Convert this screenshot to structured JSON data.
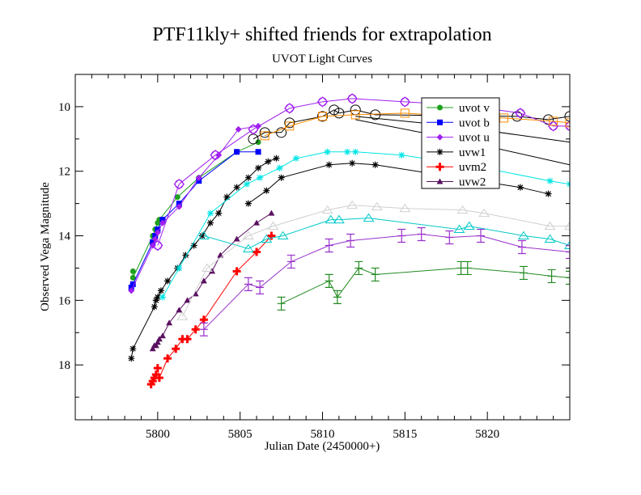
{
  "chart_data": {
    "type": "scatter",
    "title": "PTF11kly+ shifted friends for extrapolation",
    "subtitle": "UVOT Light Curves",
    "xlabel": "Julian Date (2450000+)",
    "ylabel": "Observed Vega Magnitude",
    "xlim": [
      5795,
      5825
    ],
    "ylim": [
      19.7,
      9.0
    ],
    "y_inverted": true,
    "x_ticks": [
      5800,
      5805,
      5810,
      5815,
      5820
    ],
    "x_tick_labels": [
      "5800",
      "5805",
      "5810",
      "5815",
      "5820"
    ],
    "y_ticks": [
      10,
      12,
      14,
      16,
      18
    ],
    "y_tick_labels": [
      "10",
      "12",
      "14",
      "16",
      "18"
    ],
    "legend_position": "top-right",
    "legend": [
      {
        "label": "uvot v",
        "color": "#1fa01f",
        "marker": "circle"
      },
      {
        "label": "uvot b",
        "color": "#0000ff",
        "marker": "square"
      },
      {
        "label": "uvot u",
        "color": "#a020f0",
        "marker": "diamond"
      },
      {
        "label": "uvw1",
        "color": "#000000",
        "marker": "star"
      },
      {
        "label": "uvm2",
        "color": "#ff0000",
        "marker": "plus"
      },
      {
        "label": "uvw2",
        "color": "#5a1060",
        "marker": "triangle"
      }
    ],
    "series": [
      {
        "name": "uvot v",
        "color": "#1fa01f",
        "marker": "circle",
        "x": [
          5798.5,
          5798.5,
          5799.7,
          5799.85,
          5800,
          5800.1,
          5801.2,
          5802.5,
          5804.8,
          5806.1
        ],
        "y": [
          15.1,
          15.3,
          14.0,
          13.8,
          13.6,
          13.5,
          12.8,
          12.2,
          11.4,
          11.1
        ]
      },
      {
        "name": "uvot b",
        "color": "#0000ff",
        "marker": "square",
        "x": [
          5798.4,
          5798.5,
          5799.7,
          5799.85,
          5800,
          5800.3,
          5801.3,
          5802.5,
          5804.8,
          5806.1
        ],
        "y": [
          15.6,
          15.5,
          14.2,
          14.0,
          13.8,
          13.5,
          13.0,
          12.3,
          11.4,
          11.4
        ]
      },
      {
        "name": "uvot u",
        "color": "#a020f0",
        "marker": "diamond",
        "x": [
          5798.4,
          5799.7,
          5799.85,
          5800,
          5800.3,
          5801.3,
          5802.5,
          5803.7,
          5804.9,
          5806.1
        ],
        "y": [
          15.7,
          14.3,
          14.1,
          13.9,
          13.6,
          13.1,
          12.2,
          11.5,
          10.7,
          10.6
        ]
      },
      {
        "name": "uvw1",
        "color": "#000000",
        "marker": "star",
        "x": [
          5798.4,
          5798.5,
          5799.8,
          5799.9,
          5800,
          5800.2,
          5800.6,
          5801.2,
          5801.7,
          5802.2,
          5802.7,
          5803.2,
          5803.7,
          5804.2,
          5804.8,
          5805.5,
          5806.1,
          5806.7,
          5807.2
        ],
        "y": [
          17.8,
          17.5,
          16.2,
          16.0,
          15.9,
          15.7,
          15.4,
          15.0,
          14.6,
          14.3,
          14.0,
          13.6,
          13.3,
          12.8,
          12.5,
          12.2,
          11.9,
          11.7,
          11.6
        ]
      },
      {
        "name": "uvm2",
        "color": "#ff0000",
        "marker": "plus",
        "x": [
          5799.6,
          5799.7,
          5799.8,
          5799.9,
          5800.0,
          5800.1,
          5800.6,
          5801.1,
          5801.5,
          5801.8,
          5802.3,
          5802.8,
          5804.8,
          5806.0,
          5806.9
        ],
        "y": [
          18.6,
          18.5,
          18.4,
          18.3,
          18.1,
          18.4,
          17.8,
          17.5,
          17.2,
          17.2,
          16.9,
          16.6,
          15.1,
          14.5,
          14.0
        ]
      },
      {
        "name": "uvw2",
        "color": "#5a1060",
        "marker": "triangle",
        "x": [
          5799.7,
          5799.8,
          5799.9,
          5800.0,
          5800.1,
          5800.3,
          5800.7,
          5801.3,
          5801.8,
          5802.3,
          5802.8,
          5803.3,
          5803.8,
          5804.8,
          5806.0,
          5806.9
        ],
        "y": [
          17.5,
          17.4,
          17.4,
          17.3,
          17.2,
          17.1,
          16.7,
          16.3,
          16.0,
          15.8,
          15.4,
          15.1,
          14.6,
          14.1,
          13.6,
          13.3
        ]
      },
      {
        "name": "",
        "color": "#000000",
        "marker": "circle-open",
        "x": [
          5805.8,
          5806.5,
          5807.5,
          5808.0,
          5810.0,
          5810.7,
          5811.0,
          5812.0,
          5813.2,
          5821.8,
          5823.7,
          5825.0
        ],
        "y": [
          11.0,
          10.8,
          10.8,
          10.5,
          10.3,
          10.1,
          10.2,
          10.1,
          10.25,
          10.3,
          10.4,
          10.3
        ]
      },
      {
        "name": "",
        "color": "#a020f0",
        "marker": "diamond-open",
        "x": [
          5800,
          5801.3,
          5803.5,
          5805.8,
          5808,
          5810,
          5811.8,
          5815,
          5818.5,
          5822,
          5824,
          5825
        ],
        "y": [
          14.3,
          12.4,
          11.5,
          10.7,
          10.05,
          9.85,
          9.75,
          9.85,
          9.95,
          10.2,
          10.6,
          10.6
        ]
      },
      {
        "name": "",
        "color": "#ff8c00",
        "marker": "square-open",
        "x": [
          5806.5,
          5808,
          5810,
          5812,
          5815,
          5818,
          5821,
          5824,
          5825
        ],
        "y": [
          10.9,
          10.6,
          10.3,
          10.25,
          10.2,
          10.3,
          10.35,
          10.45,
          10.5
        ]
      },
      {
        "name": "",
        "color": "#00e5e5",
        "marker": "star",
        "x": [
          5800.3,
          5801.3,
          5803.2,
          5805.4,
          5806.2,
          5807.4,
          5808.4,
          5810.3,
          5811.5,
          5812.0,
          5814.8,
          5818.8,
          5823.8,
          5825.0
        ],
        "y": [
          15.9,
          15.0,
          13.3,
          12.4,
          12.2,
          11.9,
          11.6,
          11.4,
          11.4,
          11.4,
          11.5,
          11.8,
          12.3,
          12.4
        ]
      },
      {
        "name": "",
        "color": "#000000",
        "marker": "star",
        "x": [
          5805.5,
          5806.6,
          5807.5,
          5810.4,
          5811.8,
          5813.2,
          5822.0,
          5823.7
        ],
        "y": [
          13.0,
          12.6,
          12.2,
          11.8,
          11.75,
          11.8,
          12.5,
          12.7
        ]
      },
      {
        "name": "",
        "color": "#00c8c8",
        "marker": "triangle-open",
        "x": [
          5802.8,
          5805.5,
          5806.6,
          5807.6,
          5810.5,
          5811.0,
          5812.8,
          5818.3,
          5818.9,
          5822.2,
          5823.8,
          5825.0
        ],
        "y": [
          14.0,
          14.4,
          14.1,
          14.0,
          13.5,
          13.5,
          13.45,
          13.8,
          13.7,
          14.0,
          14.1,
          14.3
        ]
      },
      {
        "name": "",
        "color": "#d0d0d0",
        "marker": "triangle-open",
        "x": [
          5801.5,
          5803.0,
          5805.5,
          5807.0,
          5810.3,
          5811.8,
          5813.3,
          5815.0,
          5818.5,
          5819.8,
          5823.8,
          5825.0
        ],
        "y": [
          16.5,
          15.0,
          14.0,
          13.7,
          13.2,
          13.05,
          13.1,
          13.15,
          13.2,
          13.3,
          13.7,
          13.7
        ]
      },
      {
        "name": "",
        "color": "#9932cc",
        "marker": "errorbar",
        "x": [
          5802.8,
          5805.5,
          5806.2,
          5808.1,
          5810.4,
          5811.7,
          5814.8,
          5816.0,
          5817.7,
          5819.6,
          5822.1,
          5825.0
        ],
        "y": [
          16.9,
          15.5,
          15.6,
          14.8,
          14.3,
          14.15,
          14.0,
          13.95,
          14.05,
          14.0,
          14.35,
          14.5
        ]
      },
      {
        "name": "",
        "color": "#228b22",
        "marker": "errorbar",
        "x": [
          5807.5,
          5810.4,
          5810.9,
          5812.2,
          5813.2,
          5818.4,
          5818.8,
          5822.2,
          5823.9,
          5825.0
        ],
        "y": [
          16.1,
          15.4,
          15.9,
          15.0,
          15.2,
          15.0,
          15.0,
          15.15,
          15.25,
          15.3
        ]
      },
      {
        "name": "",
        "color": "#000000",
        "marker": "line",
        "x": [
          5812,
          5818,
          5825
        ],
        "y": [
          10.3,
          10.6,
          11.1
        ]
      },
      {
        "name": "",
        "color": "#000000",
        "marker": "line",
        "x": [
          5812,
          5818,
          5825
        ],
        "y": [
          10.4,
          11.0,
          11.8
        ]
      }
    ]
  }
}
